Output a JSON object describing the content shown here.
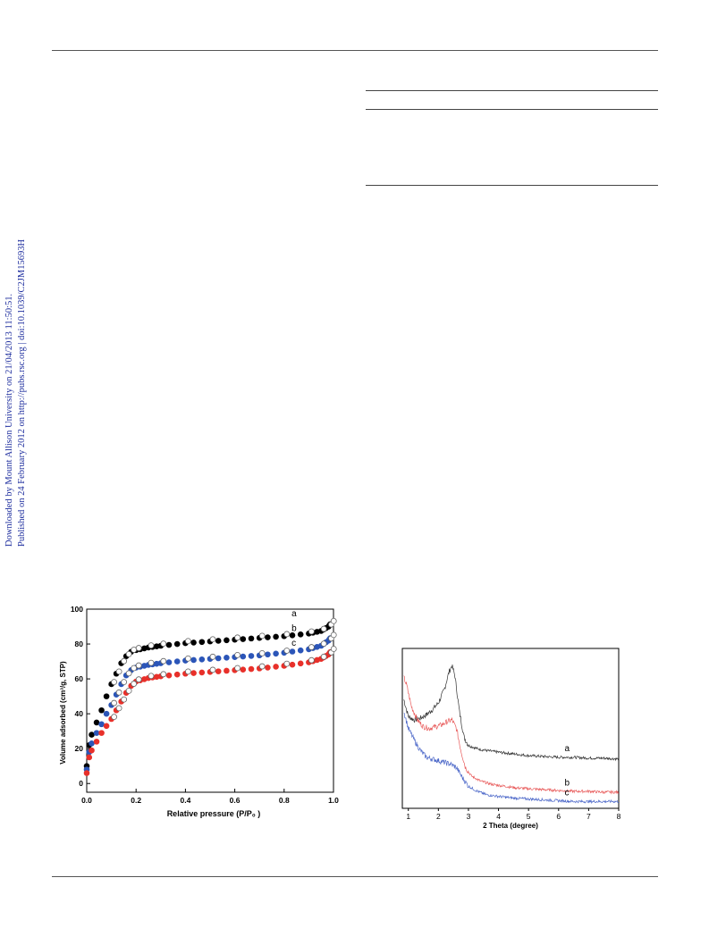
{
  "sidebar": {
    "line1": "Downloaded by Mount Allison University on 21/04/2013 11:50:51.",
    "line2": "Published on 24 February 2012 on http://pubs.rsc.org | doi:10.1039/C2JM15693H"
  },
  "chart_data": [
    {
      "type": "scatter",
      "xlabel": "Relative pressure (P/P₀ )",
      "ylabel": "Volume adsorbed (cm³/g, STP)",
      "xlim": [
        0.0,
        1.0
      ],
      "ylim": [
        -5,
        100
      ],
      "xticks": [
        "0.0",
        "0.2",
        "0.4",
        "0.6",
        "0.8",
        "1.0"
      ],
      "yticks": [
        "0",
        "20",
        "40",
        "60",
        "80",
        "100"
      ],
      "series": [
        {
          "name": "a",
          "color": "#000000",
          "x": [
            0.0,
            0.01,
            0.02,
            0.04,
            0.06,
            0.08,
            0.1,
            0.12,
            0.14,
            0.16,
            0.18,
            0.2,
            0.25,
            0.3,
            0.4,
            0.5,
            0.6,
            0.7,
            0.8,
            0.9,
            0.95,
            0.98,
            0.99
          ],
          "y": [
            10,
            22,
            28,
            35,
            42,
            50,
            57,
            63,
            69,
            73,
            75.5,
            76.5,
            78,
            79,
            80.5,
            81.5,
            82.5,
            83.5,
            84.5,
            86,
            87.5,
            90,
            92
          ]
        },
        {
          "name": "b",
          "color": "#2b55b8",
          "x": [
            0.0,
            0.01,
            0.02,
            0.04,
            0.06,
            0.08,
            0.1,
            0.12,
            0.14,
            0.16,
            0.18,
            0.2,
            0.25,
            0.3,
            0.4,
            0.5,
            0.6,
            0.7,
            0.8,
            0.9,
            0.95,
            0.98,
            0.99
          ],
          "y": [
            8,
            18,
            23,
            29,
            34,
            40,
            45,
            51,
            57,
            62,
            65,
            66.5,
            68,
            69,
            70.5,
            71.5,
            72.5,
            73.5,
            75,
            77,
            79,
            82,
            84
          ]
        },
        {
          "name": "c",
          "color": "#e8302a",
          "x": [
            0.0,
            0.01,
            0.02,
            0.04,
            0.06,
            0.08,
            0.1,
            0.12,
            0.14,
            0.16,
            0.18,
            0.2,
            0.25,
            0.3,
            0.4,
            0.5,
            0.6,
            0.7,
            0.8,
            0.9,
            0.95,
            0.98,
            0.99
          ],
          "y": [
            6,
            15,
            19,
            24,
            29,
            33,
            37,
            42,
            47,
            52,
            56,
            58.5,
            60.5,
            61.5,
            63,
            64,
            65,
            66,
            67.5,
            69.5,
            71.5,
            74,
            76
          ]
        }
      ]
    },
    {
      "type": "line",
      "xlabel": "2 Theta (degree)",
      "ylabel": "",
      "xlim": [
        0.8,
        8
      ],
      "xticks": [
        "1",
        "2",
        "3",
        "4",
        "5",
        "6",
        "7",
        "8"
      ],
      "series": [
        {
          "name": "a",
          "color": "#333333",
          "x": [
            0.85,
            1.0,
            1.2,
            1.4,
            1.6,
            1.8,
            2.0,
            2.2,
            2.35,
            2.45,
            2.55,
            2.7,
            2.85,
            3.0,
            3.3,
            3.6,
            4.0,
            4.5,
            5.0,
            5.5,
            6.0,
            6.5,
            7.0,
            7.5,
            8.0
          ],
          "y": [
            62,
            52,
            50,
            51,
            53,
            56,
            60,
            68,
            78,
            82,
            76,
            55,
            40,
            35,
            33,
            32,
            31,
            30,
            29,
            28.5,
            28,
            28,
            27.5,
            27.5,
            27
          ]
        },
        {
          "name": "b",
          "color": "#e85a5a",
          "x": [
            0.85,
            0.95,
            1.1,
            1.3,
            1.5,
            1.7,
            1.9,
            2.1,
            2.3,
            2.45,
            2.6,
            2.75,
            2.9,
            3.1,
            3.4,
            3.8,
            4.2,
            4.6,
            5.0,
            5.5,
            6.0,
            6.5,
            7.0,
            7.5,
            8.0
          ],
          "y": [
            75,
            70,
            58,
            50,
            46,
            45,
            46,
            47,
            49,
            50,
            45,
            32,
            22,
            17,
            14,
            12,
            11,
            10,
            9.5,
            9,
            8.5,
            8,
            8,
            7.5,
            7.5
          ]
        },
        {
          "name": "c",
          "color": "#4a66c8",
          "x": [
            0.85,
            1.0,
            1.2,
            1.4,
            1.6,
            1.8,
            2.0,
            2.2,
            2.4,
            2.6,
            2.8,
            3.0,
            3.3,
            3.6,
            4.0,
            4.5,
            5.0,
            5.5,
            6.0,
            6.5,
            7.0,
            7.5,
            8.0
          ],
          "y": [
            55,
            45,
            38,
            32,
            28,
            27,
            26,
            25,
            24,
            22,
            16,
            11,
            8,
            6,
            5,
            4,
            3.5,
            3,
            2.5,
            2,
            2,
            2,
            2
          ]
        }
      ]
    }
  ]
}
